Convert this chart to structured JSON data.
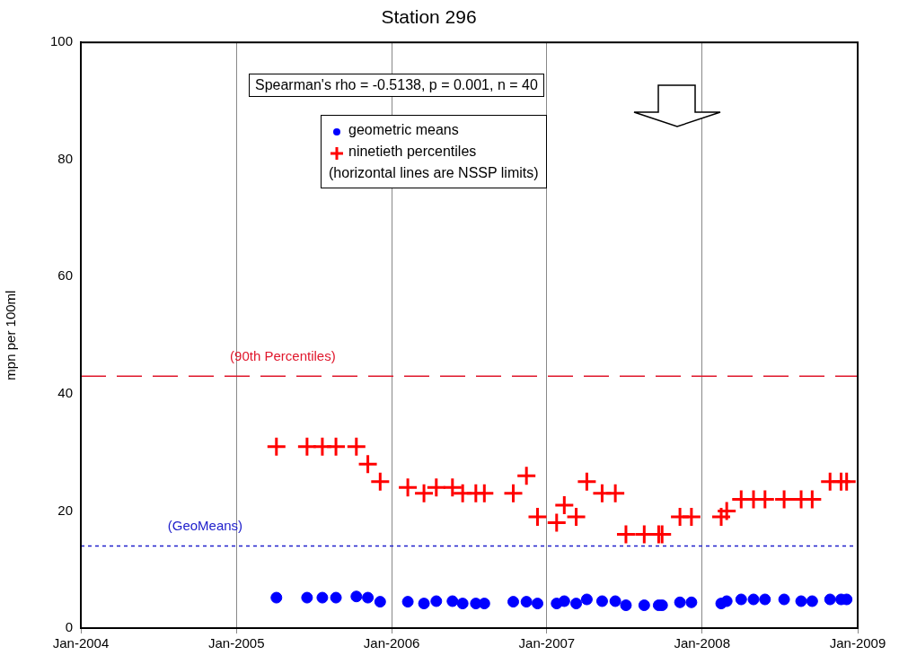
{
  "chart_data": {
    "type": "scatter",
    "title": "Station 296",
    "ylabel": "mpn per 100ml",
    "annotations": [
      "Spearman's rho = -0.5138, p = 0.001, n = 40",
      "(horizontal lines are NSSP limits)"
    ],
    "x": [
      "2005-04-05",
      "2005-06-16",
      "2005-07-22",
      "2005-08-23",
      "2005-10-10",
      "2005-11-06",
      "2005-12-05",
      "2006-02-08",
      "2006-03-18",
      "2006-04-16",
      "2006-05-24",
      "2006-06-17",
      "2006-07-18",
      "2006-08-07",
      "2006-10-14",
      "2006-11-14",
      "2006-12-10",
      "2007-01-24",
      "2007-02-11",
      "2007-03-11",
      "2007-04-05",
      "2007-05-11",
      "2007-06-11",
      "2007-07-06",
      "2007-08-18",
      "2007-09-21",
      "2007-09-29",
      "2007-11-10",
      "2007-12-07",
      "2008-02-15",
      "2008-02-28",
      "2008-04-02",
      "2008-05-01",
      "2008-05-28",
      "2008-07-12",
      "2008-08-21",
      "2008-09-16",
      "2008-10-28",
      "2008-11-23",
      "2008-12-06"
    ],
    "series": [
      {
        "name": "geometric means",
        "color": "#0000ff",
        "marker": "circle",
        "values": [
          5.2,
          5.2,
          5.2,
          5.2,
          5.4,
          5.2,
          4.5,
          4.5,
          4.2,
          4.6,
          4.6,
          4.2,
          4.2,
          4.2,
          4.5,
          4.5,
          4.2,
          4.2,
          4.6,
          4.2,
          4.9,
          4.6,
          4.6,
          3.9,
          3.9,
          3.9,
          3.9,
          4.4,
          4.4,
          4.2,
          4.6,
          4.9,
          4.9,
          4.9,
          4.9,
          4.6,
          4.6,
          4.9,
          4.9,
          4.9
        ]
      },
      {
        "name": "ninetieth percentiles",
        "color": "#ff0000",
        "marker": "cross",
        "values": [
          31,
          31,
          31,
          31,
          31,
          28,
          25,
          24,
          23,
          24,
          24,
          23,
          23,
          23,
          23,
          26,
          19,
          18,
          21,
          19,
          25,
          23,
          23,
          16,
          16,
          16,
          16,
          19,
          19,
          19,
          20,
          22,
          22,
          22,
          22,
          22,
          22,
          25,
          25,
          25
        ]
      }
    ],
    "xlim": [
      "2004-01-01",
      "2009-01-01"
    ],
    "xticks": [
      {
        "value": "2004-01-01",
        "label": "Jan-2004"
      },
      {
        "value": "2005-01-01",
        "label": "Jan-2005"
      },
      {
        "value": "2006-01-01",
        "label": "Jan-2006"
      },
      {
        "value": "2007-01-01",
        "label": "Jan-2007"
      },
      {
        "value": "2008-01-01",
        "label": "Jan-2008"
      },
      {
        "value": "2009-01-01",
        "label": "Jan-2009"
      }
    ],
    "ylim": [
      0,
      100
    ],
    "yticks": [
      0,
      20,
      40,
      60,
      80,
      100
    ],
    "ref_lines": [
      {
        "axis": "y",
        "value": 43,
        "label": "(90th Percentiles)",
        "color": "#e0162b",
        "line_style": "dashed"
      },
      {
        "axis": "y",
        "value": 14,
        "label": "(GeoMeans)",
        "color": "#2020cc",
        "line_style": "dotted"
      }
    ],
    "grid": "x",
    "legend": "top"
  }
}
